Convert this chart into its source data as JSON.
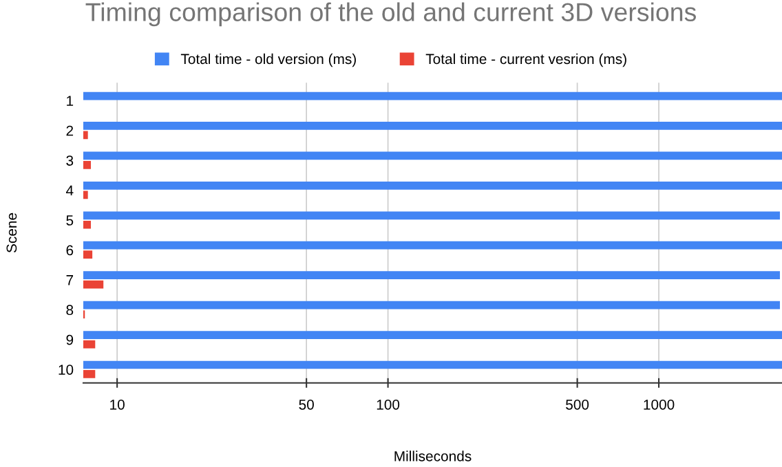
{
  "chart_data": {
    "type": "bar",
    "orientation": "horizontal",
    "title": "Timing comparison of the old and current 3D versions",
    "xlabel": "Milliseconds",
    "ylabel": "Scene",
    "categories": [
      "1",
      "2",
      "3",
      "4",
      "5",
      "6",
      "7",
      "8",
      "9",
      "10"
    ],
    "series": [
      {
        "name": "Total time - old version (ms)",
        "color": "#4285f4",
        "values": [
          2850,
          2850,
          2850,
          2850,
          2800,
          2850,
          2800,
          2800,
          2850,
          2850
        ]
      },
      {
        "name": "Total time - current vesrion (ms)",
        "color": "#ea4335",
        "values": [
          null,
          7.8,
          8.0,
          7.8,
          8.0,
          8.1,
          8.9,
          7.6,
          8.3,
          8.3
        ]
      }
    ],
    "log": "x",
    "xlim": [
      7.5,
      2850
    ],
    "xticks": [
      10,
      50,
      100,
      500,
      1000
    ],
    "grid": "x",
    "legend": "top"
  }
}
